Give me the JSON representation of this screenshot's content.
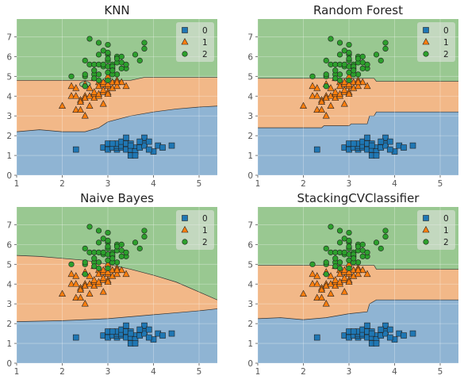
{
  "colors": {
    "class0": "#1f77b4",
    "class1": "#ff7f0e",
    "class2": "#2ca02c",
    "region0": "#8fb4d3",
    "region1": "#f2b888",
    "region2": "#99c891",
    "axes_bg": "#e5e5e5",
    "grid": "#ffffff"
  },
  "chart_data": [
    {
      "type": "scatter",
      "title": "KNN",
      "xlim": [
        1,
        5.4
      ],
      "ylim": [
        0,
        7.9
      ],
      "xticks": [
        "1",
        "2",
        "3",
        "4",
        "5"
      ],
      "yticks": [
        "0",
        "1",
        "2",
        "3",
        "4",
        "5",
        "6",
        "7"
      ],
      "grid": true,
      "legend": "top-right",
      "legend_entries": [
        "0",
        "1",
        "2"
      ],
      "decision_boundaries": {
        "between_0_and_1": [
          [
            1,
            2.2
          ],
          [
            1.5,
            2.3
          ],
          [
            2,
            2.2
          ],
          [
            2.5,
            2.2
          ],
          [
            2.8,
            2.4
          ],
          [
            3,
            2.7
          ],
          [
            3.5,
            3.0
          ],
          [
            4,
            3.2
          ],
          [
            4.5,
            3.35
          ],
          [
            5,
            3.45
          ],
          [
            5.4,
            3.5
          ]
        ],
        "between_1_and_2": [
          [
            1,
            4.8
          ],
          [
            2.3,
            4.8
          ],
          [
            3.5,
            4.8
          ],
          [
            3.8,
            4.95
          ],
          [
            4.2,
            4.95
          ],
          [
            5.4,
            4.95
          ]
        ],
        "island_class2": {
          "cx": 2.5,
          "cy": 4.6,
          "rx": 0.12,
          "ry": 0.15
        }
      }
    },
    {
      "type": "scatter",
      "title": "Random Forest",
      "xlim": [
        1,
        5.4
      ],
      "ylim": [
        0,
        7.9
      ],
      "xticks": [
        "1",
        "2",
        "3",
        "4",
        "5"
      ],
      "yticks": [
        "0",
        "1",
        "2",
        "3",
        "4",
        "5",
        "6",
        "7"
      ],
      "grid": true,
      "legend": "top-right",
      "legend_entries": [
        "0",
        "1",
        "2"
      ],
      "decision_boundaries": {
        "between_0_and_1": [
          [
            1,
            2.4
          ],
          [
            2.4,
            2.4
          ],
          [
            2.45,
            2.5
          ],
          [
            3,
            2.5
          ],
          [
            3.05,
            2.6
          ],
          [
            3.4,
            2.6
          ],
          [
            3.45,
            3.0
          ],
          [
            3.55,
            3.0
          ],
          [
            3.6,
            3.2
          ],
          [
            5.4,
            3.2
          ]
        ],
        "between_1_and_2": [
          [
            1,
            4.9
          ],
          [
            3.55,
            4.9
          ],
          [
            3.6,
            4.75
          ],
          [
            5.4,
            4.75
          ]
        ],
        "island_class2": {
          "cx": 2.5,
          "cy": 4.5,
          "rx": 0.05,
          "ry": 0.06
        }
      }
    },
    {
      "type": "scatter",
      "title": "Naive Bayes",
      "xlim": [
        1,
        5.4
      ],
      "ylim": [
        0,
        7.9
      ],
      "xticks": [
        "1",
        "2",
        "3",
        "4",
        "5"
      ],
      "yticks": [
        "0",
        "1",
        "2",
        "3",
        "4",
        "5",
        "6",
        "7"
      ],
      "grid": true,
      "legend": "top-right",
      "legend_entries": [
        "0",
        "1",
        "2"
      ],
      "decision_boundaries": {
        "between_0_and_1": [
          [
            1,
            2.1
          ],
          [
            2,
            2.15
          ],
          [
            3,
            2.25
          ],
          [
            3.5,
            2.35
          ],
          [
            4,
            2.45
          ],
          [
            4.5,
            2.55
          ],
          [
            5,
            2.65
          ],
          [
            5.4,
            2.75
          ]
        ],
        "between_1_and_2": [
          [
            1,
            5.45
          ],
          [
            1.5,
            5.4
          ],
          [
            2,
            5.3
          ],
          [
            2.5,
            5.2
          ],
          [
            3,
            5.0
          ],
          [
            3.5,
            4.75
          ],
          [
            4,
            4.45
          ],
          [
            4.5,
            4.1
          ],
          [
            5,
            3.6
          ],
          [
            5.4,
            3.2
          ]
        ]
      }
    },
    {
      "type": "scatter",
      "title": "StackingCVClassifier",
      "xlim": [
        1,
        5.4
      ],
      "ylim": [
        0,
        7.9
      ],
      "xticks": [
        "1",
        "2",
        "3",
        "4",
        "5"
      ],
      "yticks": [
        "0",
        "1",
        "2",
        "3",
        "4",
        "5",
        "6",
        "7"
      ],
      "grid": true,
      "legend": "top-right",
      "legend_entries": [
        "0",
        "1",
        "2"
      ],
      "decision_boundaries": {
        "between_0_and_1": [
          [
            1,
            2.25
          ],
          [
            1.5,
            2.3
          ],
          [
            2,
            2.2
          ],
          [
            2.5,
            2.3
          ],
          [
            3,
            2.5
          ],
          [
            3.4,
            2.6
          ],
          [
            3.45,
            3.0
          ],
          [
            3.6,
            3.2
          ],
          [
            5.4,
            3.2
          ]
        ],
        "between_1_and_2": [
          [
            1,
            4.95
          ],
          [
            3.55,
            4.95
          ],
          [
            3.6,
            4.75
          ],
          [
            5.4,
            4.75
          ]
        ]
      }
    }
  ],
  "scatter_points": {
    "class0": [
      [
        2.3,
        1.3
      ],
      [
        2.9,
        1.4
      ],
      [
        3.0,
        1.4
      ],
      [
        3.0,
        1.3
      ],
      [
        3.1,
        1.5
      ],
      [
        3.1,
        1.4
      ],
      [
        3.2,
        1.3
      ],
      [
        3.2,
        1.4
      ],
      [
        3.2,
        1.5
      ],
      [
        3.2,
        1.6
      ],
      [
        3.3,
        1.4
      ],
      [
        3.3,
        1.5
      ],
      [
        3.3,
        1.7
      ],
      [
        3.4,
        1.4
      ],
      [
        3.4,
        1.5
      ],
      [
        3.4,
        1.6
      ],
      [
        3.4,
        1.3
      ],
      [
        3.5,
        1.4
      ],
      [
        3.5,
        1.3
      ],
      [
        3.5,
        1.6
      ],
      [
        3.6,
        1.4
      ],
      [
        3.6,
        1.2
      ],
      [
        3.7,
        1.5
      ],
      [
        3.7,
        1.4
      ],
      [
        3.8,
        1.6
      ],
      [
        3.8,
        1.9
      ],
      [
        3.8,
        1.5
      ],
      [
        3.9,
        1.7
      ],
      [
        4.0,
        1.2
      ],
      [
        4.1,
        1.5
      ],
      [
        4.2,
        1.4
      ],
      [
        4.4,
        1.5
      ],
      [
        3.0,
        1.6
      ],
      [
        3.1,
        1.6
      ],
      [
        3.5,
        1.0
      ],
      [
        3.6,
        1.0
      ],
      [
        3.9,
        1.3
      ],
      [
        3.4,
        1.9
      ],
      [
        3.5,
        1.5
      ],
      [
        3.7,
        1.7
      ]
    ],
    "class1": [
      [
        2.0,
        3.5
      ],
      [
        2.2,
        4.0
      ],
      [
        2.2,
        4.5
      ],
      [
        2.3,
        4.0
      ],
      [
        2.3,
        4.4
      ],
      [
        2.3,
        3.3
      ],
      [
        2.4,
        3.8
      ],
      [
        2.4,
        3.7
      ],
      [
        2.4,
        3.3
      ],
      [
        2.5,
        4.0
      ],
      [
        2.5,
        3.0
      ],
      [
        2.5,
        3.9
      ],
      [
        2.6,
        4.4
      ],
      [
        2.6,
        3.5
      ],
      [
        2.6,
        4.0
      ],
      [
        2.7,
        3.9
      ],
      [
        2.7,
        4.1
      ],
      [
        2.7,
        4.2
      ],
      [
        2.7,
        4.9
      ],
      [
        2.8,
        4.0
      ],
      [
        2.8,
        4.7
      ],
      [
        2.8,
        4.1
      ],
      [
        2.8,
        4.5
      ],
      [
        2.9,
        4.6
      ],
      [
        2.9,
        4.2
      ],
      [
        2.9,
        3.6
      ],
      [
        2.9,
        4.3
      ],
      [
        3.0,
        4.2
      ],
      [
        3.0,
        4.1
      ],
      [
        3.0,
        4.5
      ],
      [
        3.0,
        5.0
      ],
      [
        3.1,
        4.4
      ],
      [
        3.1,
        4.7
      ],
      [
        3.2,
        4.8
      ],
      [
        3.2,
        4.5
      ],
      [
        3.3,
        4.7
      ],
      [
        3.4,
        4.5
      ],
      [
        3.2,
        4.7
      ],
      [
        2.9,
        4.7
      ],
      [
        2.5,
        4.6
      ],
      [
        3.0,
        4.6
      ]
    ],
    "class2": [
      [
        2.2,
        5.0
      ],
      [
        2.5,
        4.5
      ],
      [
        2.5,
        5.8
      ],
      [
        2.5,
        5.0
      ],
      [
        2.6,
        6.9
      ],
      [
        2.6,
        5.6
      ],
      [
        2.7,
        5.1
      ],
      [
        2.7,
        5.3
      ],
      [
        2.7,
        5.6
      ],
      [
        2.8,
        5.1
      ],
      [
        2.8,
        5.6
      ],
      [
        2.8,
        6.1
      ],
      [
        2.8,
        4.8
      ],
      [
        2.8,
        6.7
      ],
      [
        2.9,
        5.5
      ],
      [
        2.9,
        6.3
      ],
      [
        3.0,
        5.8
      ],
      [
        3.0,
        6.1
      ],
      [
        3.0,
        5.5
      ],
      [
        3.0,
        5.9
      ],
      [
        3.0,
        5.2
      ],
      [
        3.0,
        6.6
      ],
      [
        3.0,
        4.8
      ],
      [
        3.1,
        5.4
      ],
      [
        3.1,
        5.6
      ],
      [
        3.1,
        5.5
      ],
      [
        3.2,
        5.7
      ],
      [
        3.2,
        6.0
      ],
      [
        3.2,
        5.1
      ],
      [
        3.2,
        5.9
      ],
      [
        3.3,
        5.7
      ],
      [
        3.3,
        6.0
      ],
      [
        3.4,
        5.4
      ],
      [
        3.4,
        5.6
      ],
      [
        3.6,
        6.1
      ],
      [
        3.8,
        6.4
      ],
      [
        3.8,
        6.7
      ],
      [
        2.9,
        5.6
      ],
      [
        2.7,
        4.9
      ],
      [
        3.1,
        5.1
      ],
      [
        3.1,
        5.3
      ],
      [
        3.3,
        5.4
      ],
      [
        3.0,
        6.2
      ],
      [
        2.5,
        5.1
      ],
      [
        3.7,
        5.8
      ]
    ]
  }
}
